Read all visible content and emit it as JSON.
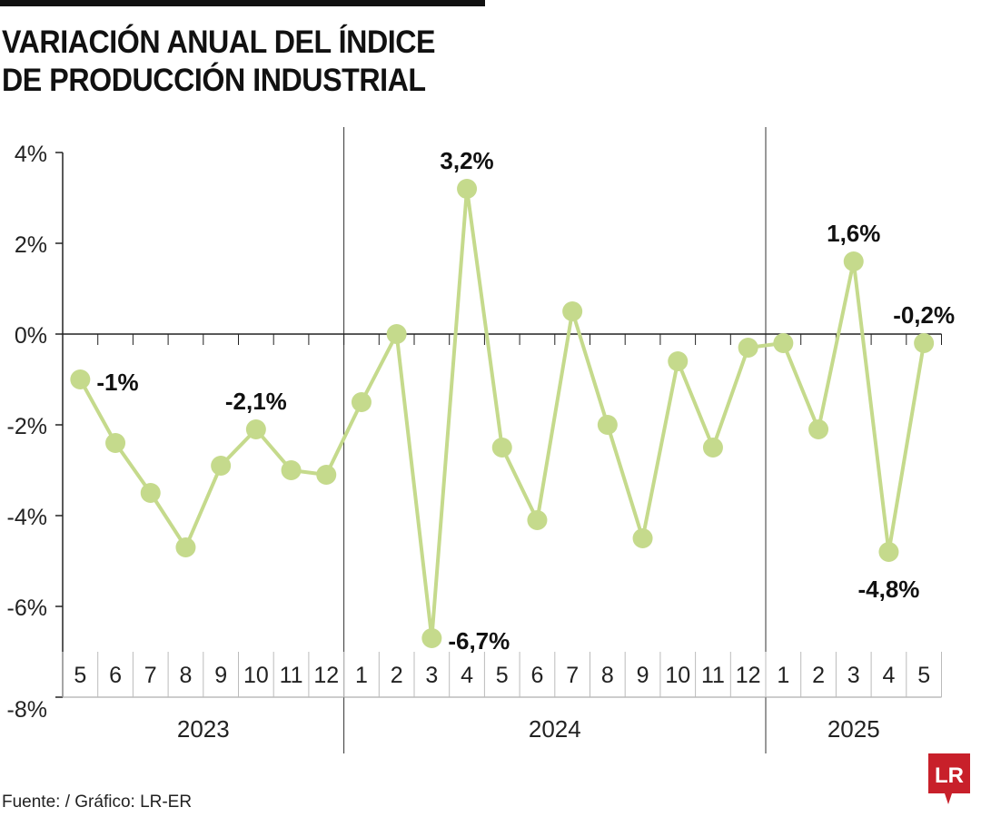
{
  "title": "VARIACIÓN ANUAL DEL ÍNDICE\nDE PRODUCCIÓN INDUSTRIAL",
  "source": "Fuente: / Gráfico: LR-ER",
  "logo_text": "LR",
  "chart_data": {
    "type": "line",
    "title": "VARIACIÓN ANUAL DEL ÍNDICE DE PRODUCCIÓN INDUSTRIAL",
    "xlabel": "",
    "ylabel": "",
    "ylim": [
      -8,
      4
    ],
    "yticks": [
      "4%",
      "2%",
      "0%",
      "-2%",
      "-4%",
      "-6%",
      "-8%"
    ],
    "ytick_values": [
      4,
      2,
      0,
      -2,
      -4,
      -6,
      -8
    ],
    "grid": false,
    "categories": [
      "5",
      "6",
      "7",
      "8",
      "9",
      "10",
      "11",
      "12",
      "1",
      "2",
      "3",
      "4",
      "5",
      "6",
      "7",
      "8",
      "9",
      "10",
      "11",
      "12",
      "1",
      "2",
      "3",
      "4",
      "5"
    ],
    "years": [
      {
        "label": "2023",
        "start": 0,
        "end": 7
      },
      {
        "label": "2024",
        "start": 8,
        "end": 19
      },
      {
        "label": "2025",
        "start": 20,
        "end": 24
      }
    ],
    "values": [
      -1,
      -2.4,
      -3.5,
      -4.7,
      -2.9,
      -2.1,
      -3.0,
      -3.1,
      -1.5,
      0,
      -6.7,
      3.2,
      -2.5,
      -4.1,
      0.5,
      -2.0,
      -4.5,
      -0.6,
      -2.5,
      -0.3,
      -0.2,
      -2.1,
      1.6,
      -4.8,
      -0.2
    ],
    "data_labels": [
      {
        "index": 0,
        "text": "-1%",
        "pos": "right"
      },
      {
        "index": 5,
        "text": "-2,1%",
        "pos": "top"
      },
      {
        "index": 10,
        "text": "-6,7%",
        "pos": "right"
      },
      {
        "index": 11,
        "text": "3,2%",
        "pos": "top"
      },
      {
        "index": 22,
        "text": "1,6%",
        "pos": "top"
      },
      {
        "index": 23,
        "text": "-4,8%",
        "pos": "bottom"
      },
      {
        "index": 24,
        "text": "-0,2%",
        "pos": "top"
      }
    ],
    "colors": {
      "series": "#c5da8c",
      "axis": "#222222"
    }
  }
}
